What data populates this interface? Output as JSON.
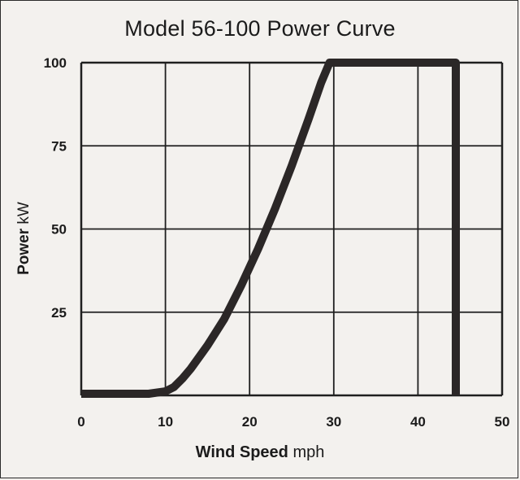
{
  "chart_data": {
    "type": "line",
    "title": "Model 56-100 Power Curve",
    "xlabel_bold": "Wind Speed",
    "xlabel_unit": "mph",
    "ylabel_bold": "Power",
    "ylabel_unit": "kW",
    "xlim": [
      0,
      50
    ],
    "ylim": [
      0,
      100
    ],
    "xticks": [
      "0",
      "10",
      "20",
      "30",
      "40",
      "50"
    ],
    "yticks": [
      "100",
      "75",
      "50",
      "25"
    ],
    "grid": true,
    "series": [
      {
        "x": [
          0,
          5,
          8,
          10,
          11,
          12,
          13,
          15,
          17,
          19,
          21,
          23,
          25,
          27,
          28.5,
          29.5,
          35,
          40,
          44.5,
          44.5,
          44.5
        ],
        "y": [
          0.5,
          0.5,
          0.5,
          1.2,
          2.5,
          5,
          8,
          15,
          23,
          33,
          44,
          56,
          69,
          83,
          94,
          100,
          100,
          100,
          100,
          50,
          0
        ]
      }
    ],
    "colors": {
      "curve": "#2b2727",
      "grid": "#1f1f1f"
    }
  }
}
